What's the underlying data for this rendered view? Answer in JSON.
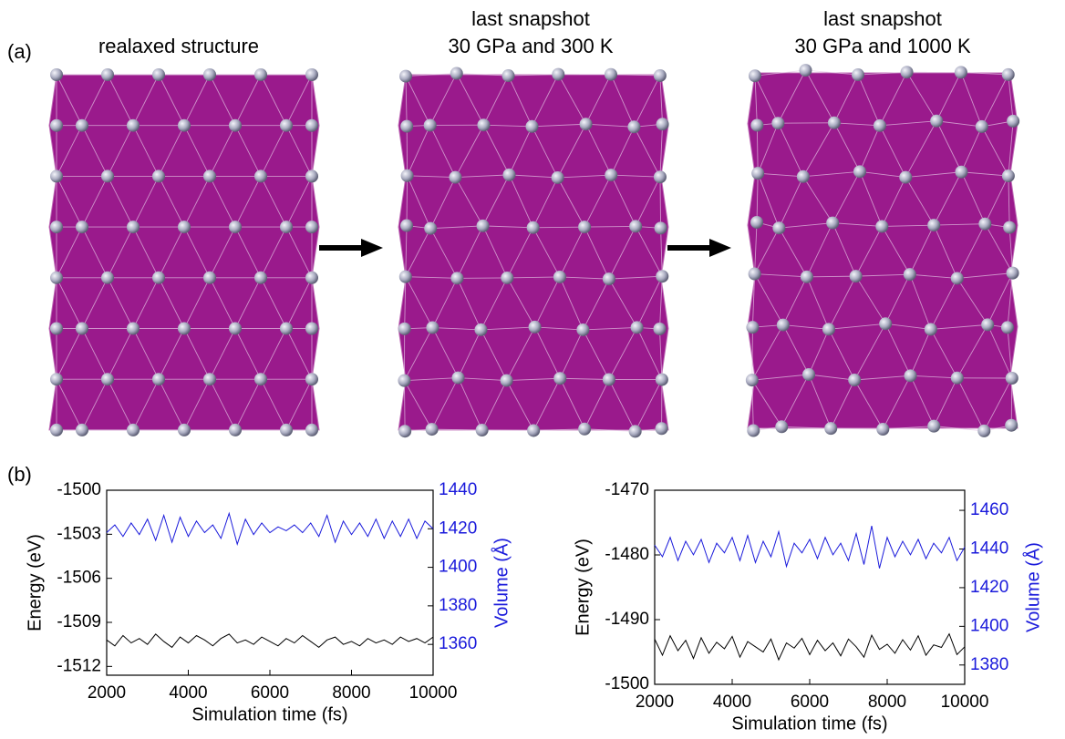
{
  "figure": {
    "panel_a": "(a)",
    "panel_b": "(b)",
    "structures": [
      {
        "title": [
          "realaxed structure"
        ]
      },
      {
        "title": [
          "last snapshot",
          "30 GPa and 300 K"
        ]
      },
      {
        "title": [
          "last snapshot",
          "30 GPa and 1000 K"
        ]
      }
    ]
  },
  "chart_data": [
    {
      "type": "line",
      "x": [
        2000,
        2200,
        2400,
        2600,
        2800,
        3000,
        3200,
        3400,
        3600,
        3800,
        4000,
        4200,
        4400,
        4600,
        4800,
        5000,
        5200,
        5400,
        5600,
        5800,
        6000,
        6200,
        6400,
        6600,
        6800,
        7000,
        7200,
        7400,
        7600,
        7800,
        8000,
        8200,
        8400,
        8600,
        8800,
        9000,
        9200,
        9400,
        9600,
        9800,
        10000
      ],
      "xlim": [
        2000,
        10000
      ],
      "xticks": [
        2000,
        4000,
        6000,
        8000,
        10000
      ],
      "ylim": [
        -1512.6,
        -1500
      ],
      "yticks": [
        -1500,
        -1503,
        -1506,
        -1509,
        -1512
      ],
      "y2lim": [
        1344,
        1440
      ],
      "y2ticks": [
        1360,
        1380,
        1400,
        1420,
        1440
      ],
      "xlabel": "Simulation time (fs)",
      "ylabel": "Energy (eV)",
      "y2label": "Volume (Å)",
      "series": [
        {
          "color": "#000000",
          "values": [
            -1510.2,
            -1510.6,
            -1509.9,
            -1510.4,
            -1510.1,
            -1510.5,
            -1509.8,
            -1510.3,
            -1510.7,
            -1510.0,
            -1510.4,
            -1509.9,
            -1510.2,
            -1510.6,
            -1510.1,
            -1509.8,
            -1510.4,
            -1510.2,
            -1510.5,
            -1510.0,
            -1510.3,
            -1510.6,
            -1510.1,
            -1510.4,
            -1509.9,
            -1510.3,
            -1510.7,
            -1510.2,
            -1510.0,
            -1510.5,
            -1510.3,
            -1510.6,
            -1510.1,
            -1510.4,
            -1510.2,
            -1510.5,
            -1510.0,
            -1510.3,
            -1510.1,
            -1510.4,
            -1510.0
          ]
        },
        {
          "color": "#1a1adb",
          "axis": "y2",
          "values": [
            1418,
            1422,
            1416,
            1423,
            1417,
            1425,
            1414,
            1427,
            1413,
            1426,
            1416,
            1424,
            1418,
            1422,
            1415,
            1428,
            1412,
            1425,
            1417,
            1423,
            1418,
            1421,
            1419,
            1422,
            1418,
            1423,
            1416,
            1427,
            1413,
            1424,
            1417,
            1423,
            1416,
            1425,
            1415,
            1424,
            1416,
            1425,
            1415,
            1424,
            1420
          ]
        }
      ]
    },
    {
      "type": "line",
      "x": [
        2000,
        2200,
        2400,
        2600,
        2800,
        3000,
        3200,
        3400,
        3600,
        3800,
        4000,
        4200,
        4400,
        4600,
        4800,
        5000,
        5200,
        5400,
        5600,
        5800,
        6000,
        6200,
        6400,
        6600,
        6800,
        7000,
        7200,
        7400,
        7600,
        7800,
        8000,
        8200,
        8400,
        8600,
        8800,
        9000,
        9200,
        9400,
        9600,
        9800,
        10000
      ],
      "xlim": [
        2000,
        10000
      ],
      "xticks": [
        2000,
        4000,
        6000,
        8000,
        10000
      ],
      "ylim": [
        -1500,
        -1470
      ],
      "yticks": [
        -1470,
        -1480,
        -1490,
        -1500
      ],
      "y2lim": [
        1370,
        1470.4
      ],
      "y2ticks": [
        1380,
        1400,
        1420,
        1440,
        1460
      ],
      "xlabel": "Simulation time (fs)",
      "ylabel": "Energy (eV)",
      "y2label": "Volume (Å)",
      "series": [
        {
          "color": "#000000",
          "values": [
            -1493,
            -1495.5,
            -1492.5,
            -1494.8,
            -1493.2,
            -1496,
            -1492.8,
            -1495.2,
            -1493.5,
            -1494.5,
            -1492.6,
            -1495.8,
            -1493.4,
            -1494.2,
            -1495,
            -1493,
            -1496.2,
            -1493.6,
            -1494.4,
            -1492.9,
            -1495.4,
            -1493.2,
            -1494.8,
            -1493.6,
            -1495.6,
            -1493,
            -1494.2,
            -1495.8,
            -1492.4,
            -1494.6,
            -1493.8,
            -1495.2,
            -1493.1,
            -1494.7,
            -1492.5,
            -1495.5,
            -1493.9,
            -1494.3,
            -1492.2,
            -1495.4,
            -1494.2
          ]
        },
        {
          "color": "#1a1adb",
          "axis": "y2",
          "values": [
            1442,
            1436,
            1446,
            1434,
            1444,
            1437,
            1445,
            1433,
            1443,
            1438,
            1446,
            1434,
            1447,
            1433,
            1444,
            1436,
            1449,
            1431,
            1443,
            1438,
            1445,
            1435,
            1446,
            1437,
            1443,
            1434,
            1448,
            1432,
            1452,
            1430,
            1446,
            1436,
            1444,
            1437,
            1445,
            1435,
            1443,
            1438,
            1446,
            1434,
            1441
          ]
        }
      ]
    }
  ]
}
